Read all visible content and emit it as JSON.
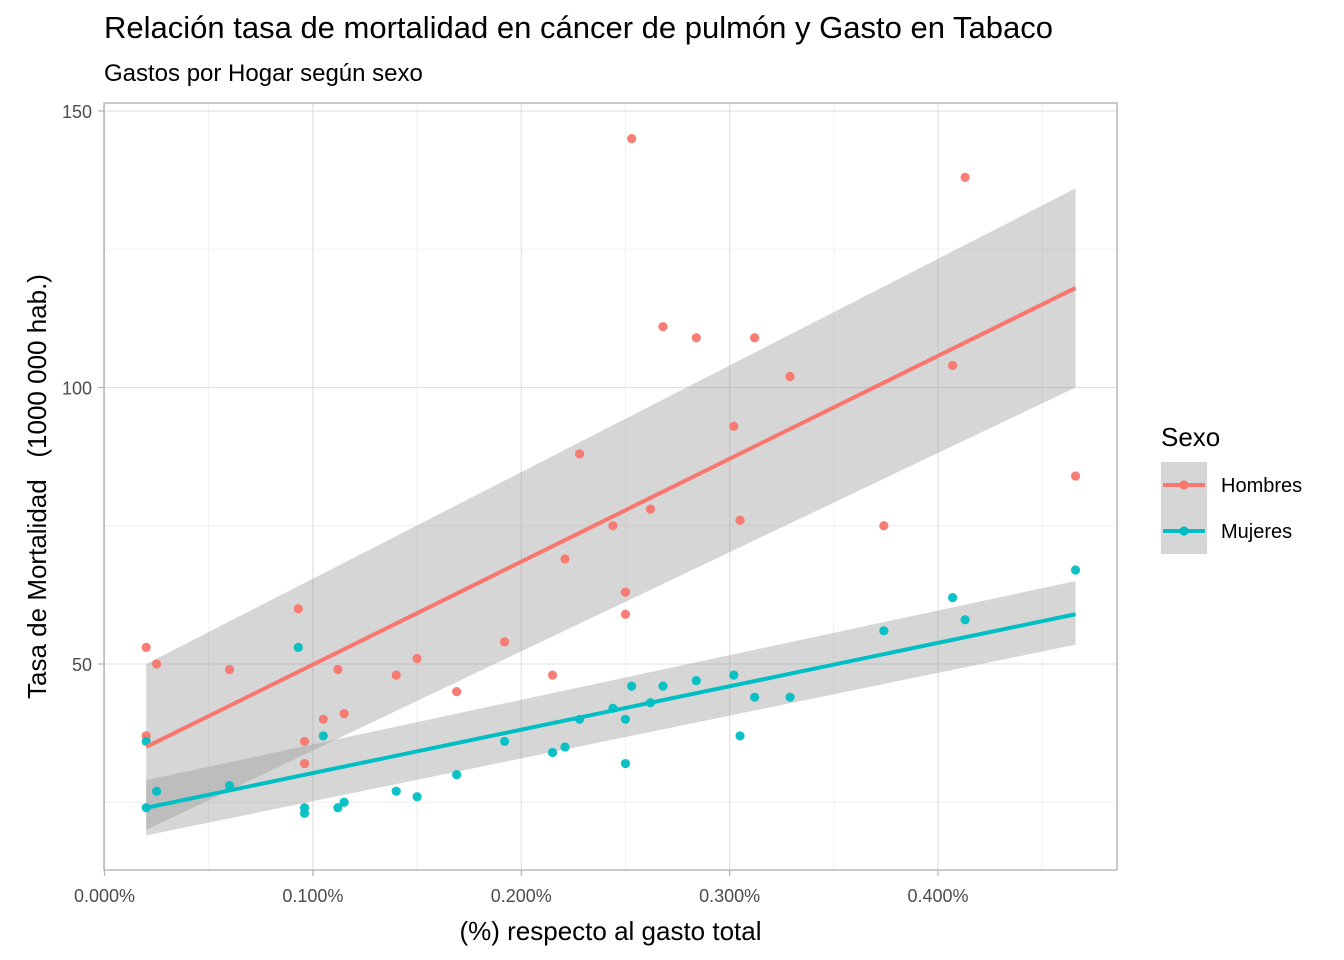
{
  "chart_data": {
    "type": "scatter",
    "title": "Relación tasa de mortalidad en cáncer de pulmón y Gasto en Tabaco",
    "subtitle": "Gastos por Hogar según sexo",
    "xlabel": "(%) respecto al gasto total",
    "ylabel": "Tasa de Mortalidad   (1000 000 hab.)",
    "xlim": [
      0.0,
      0.0049
    ],
    "ylim": [
      14,
      150
    ],
    "x_ticks": [
      0.0,
      0.001,
      0.002,
      0.003,
      0.004
    ],
    "x_tick_labels": [
      "0.000%",
      "0.100%",
      "0.200%",
      "0.300%",
      "0.400%"
    ],
    "y_ticks": [
      50,
      100,
      150
    ],
    "y_tick_labels": [
      "50",
      "100",
      "150"
    ],
    "grid": true,
    "legend": {
      "title": "Sexo",
      "position": "right"
    },
    "series": [
      {
        "name": "Hombres",
        "color": "#F8766D",
        "x": [
          0.0002,
          0.0002,
          0.00025,
          0.0006,
          0.00093,
          0.00096,
          0.00096,
          0.00105,
          0.00112,
          0.00115,
          0.0014,
          0.0015,
          0.00169,
          0.00192,
          0.00215,
          0.00221,
          0.00228,
          0.00244,
          0.0025,
          0.0025,
          0.00253,
          0.00262,
          0.00268,
          0.00284,
          0.00302,
          0.00305,
          0.00312,
          0.00329,
          0.00374,
          0.00407,
          0.00413,
          0.00466
        ],
        "y": [
          53,
          37,
          50,
          49,
          60,
          32,
          36,
          40,
          49,
          41,
          48,
          51,
          45,
          54,
          48,
          69,
          88,
          75,
          63,
          59,
          145,
          78,
          111,
          109,
          93,
          76,
          109,
          102,
          75,
          104,
          138,
          84
        ],
        "fit": {
          "x": [
            0.0002,
            0.00466
          ],
          "y": [
            35,
            118
          ],
          "lower": [
            20,
            100
          ],
          "upper": [
            50,
            136
          ]
        }
      },
      {
        "name": "Mujeres",
        "color": "#00BFC4",
        "x": [
          0.0002,
          0.0002,
          0.00025,
          0.0006,
          0.00093,
          0.00096,
          0.00096,
          0.00105,
          0.00112,
          0.00115,
          0.0014,
          0.0015,
          0.00169,
          0.00192,
          0.00215,
          0.00221,
          0.00228,
          0.00244,
          0.0025,
          0.0025,
          0.00253,
          0.00262,
          0.00268,
          0.00284,
          0.00302,
          0.00305,
          0.00312,
          0.00329,
          0.00374,
          0.00407,
          0.00413,
          0.00466
        ],
        "y": [
          36,
          24,
          27,
          28,
          53,
          23,
          24,
          37,
          24,
          25,
          27,
          26,
          30,
          36,
          34,
          35,
          40,
          42,
          32,
          40,
          46,
          43,
          46,
          47,
          48,
          37,
          44,
          44,
          56,
          62,
          58,
          67
        ],
        "fit": {
          "x": [
            0.0002,
            0.00466
          ],
          "y": [
            24,
            59
          ],
          "lower": [
            19,
            53.5
          ],
          "upper": [
            29,
            65
          ]
        }
      }
    ]
  }
}
